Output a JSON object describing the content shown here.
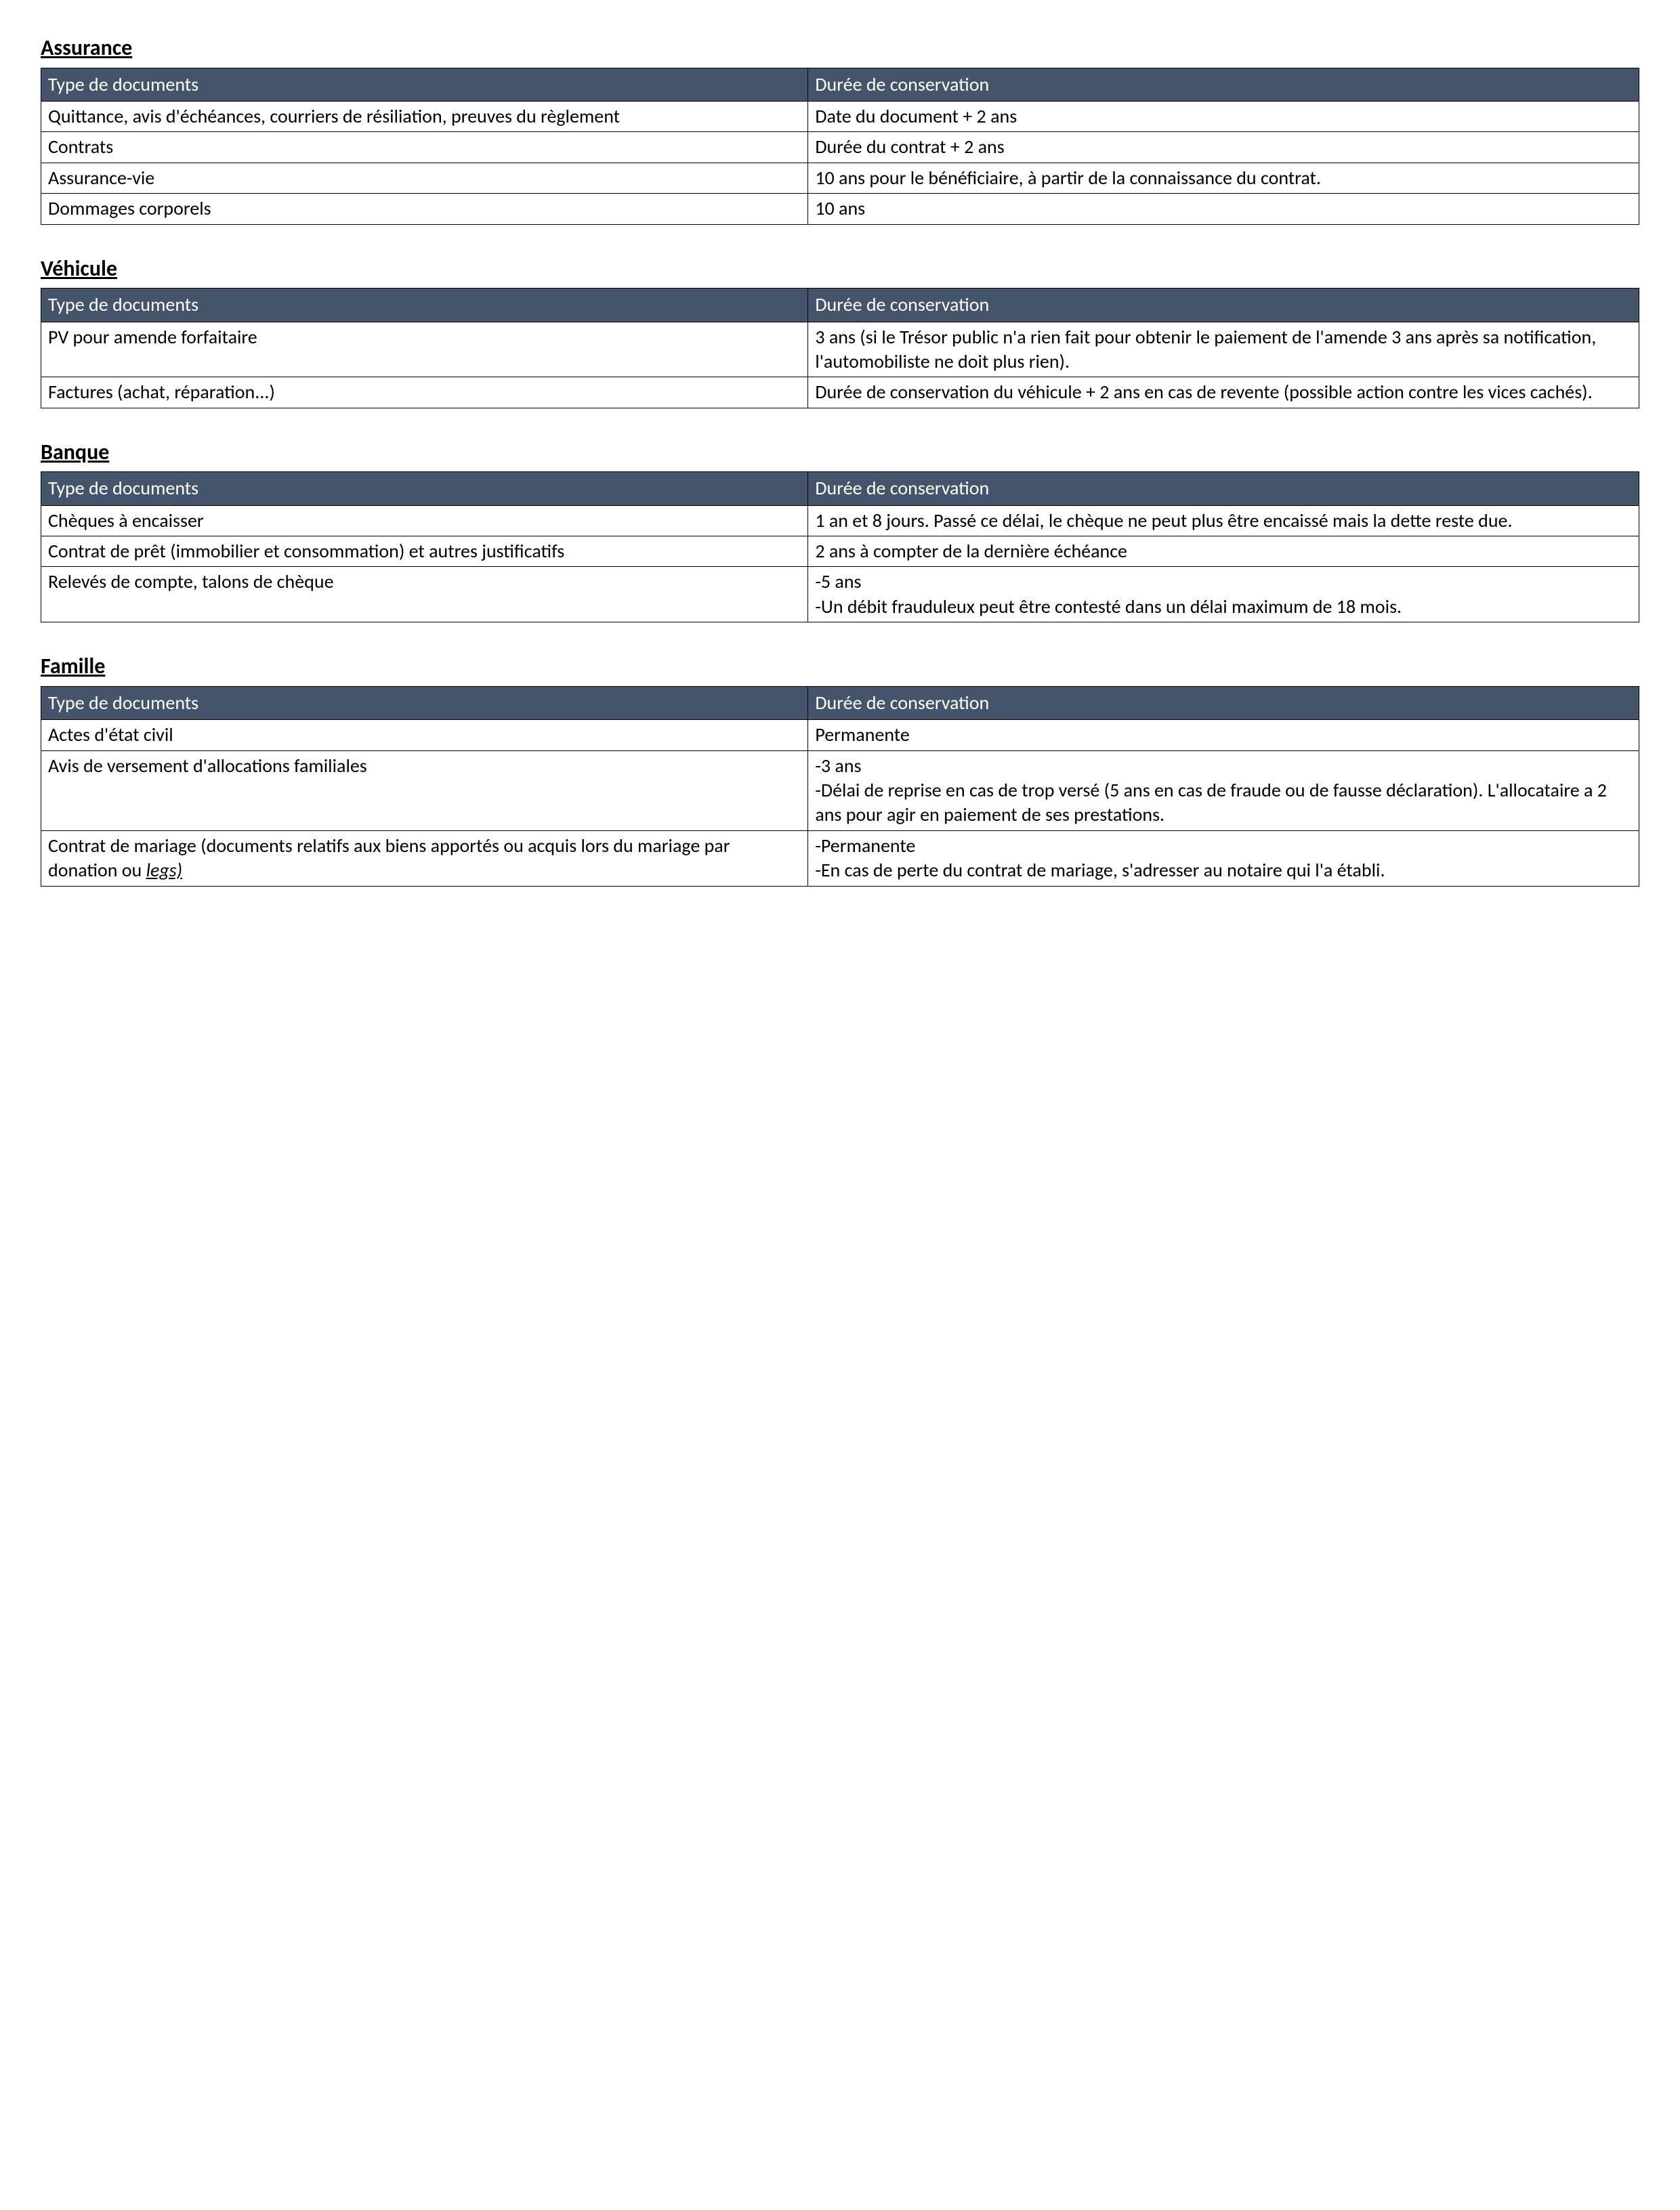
{
  "colors": {
    "header_bg": "#44546a",
    "header_text": "#ffffff",
    "cell_bg": "#ffffff",
    "text": "#000000",
    "border": "#000000"
  },
  "typography": {
    "title_fontsize": 32,
    "body_fontsize": 28,
    "font_family": "Calibri"
  },
  "layout": {
    "col_left_pct": 48,
    "col_right_pct": 52
  },
  "common_headers": {
    "type": "Type de documents",
    "duration": "Durée de conservation"
  },
  "sections": [
    {
      "title": "Assurance",
      "rows": [
        {
          "type": "Quittance, avis d'échéances, courriers de résiliation, preuves du règlement",
          "duration": "Date du document + 2 ans"
        },
        {
          "type": "Contrats",
          "duration": "Durée du contrat + 2 ans"
        },
        {
          "type": "Assurance-vie",
          "duration": "10 ans pour le bénéficiaire, à partir de la connaissance du contrat."
        },
        {
          "type": "Dommages corporels",
          "duration": "10 ans"
        }
      ]
    },
    {
      "title": "Véhicule",
      "rows": [
        {
          "type": "PV pour amende forfaitaire",
          "duration": "3 ans (si le Trésor public n'a rien fait pour obtenir le paiement de l'amende 3 ans après sa notification, l'automobiliste ne doit plus rien)."
        },
        {
          "type": "Factures (achat, réparation...)",
          "duration": "Durée de conservation du véhicule + 2 ans en cas de revente (possible action contre les vices cachés)."
        }
      ]
    },
    {
      "title": "Banque",
      "rows": [
        {
          "type": "Chèques à encaisser",
          "duration": "1 an et 8 jours. Passé ce délai, le chèque ne peut plus être encaissé mais la dette reste due."
        },
        {
          "type": "Contrat de prêt (immobilier et consommation) et autres justificatifs",
          "duration": "2 ans à compter de la dernière échéance"
        },
        {
          "type": "Relevés de compte, talons de chèque",
          "duration": "-5 ans\n-Un débit frauduleux peut être contesté dans un délai maximum de 18 mois."
        }
      ]
    },
    {
      "title": "Famille",
      "rows": [
        {
          "type": "Actes d'état civil",
          "duration": "Permanente"
        },
        {
          "type": "Avis de versement d'allocations familiales",
          "duration": "-3 ans\n-Délai de reprise en cas de trop versé (5 ans en cas de fraude ou de fausse déclaration). L'allocataire a 2 ans pour agir en paiement de ses prestations."
        },
        {
          "type_html": "Contrat de mariage (documents relatifs aux biens apportés ou acquis lors du mariage par donation ou <span class=\"italic-underline\">legs)</span>",
          "duration": "-Permanente\n-En cas de perte du contrat de mariage, s'adresser au notaire qui l'a établi."
        }
      ]
    }
  ]
}
